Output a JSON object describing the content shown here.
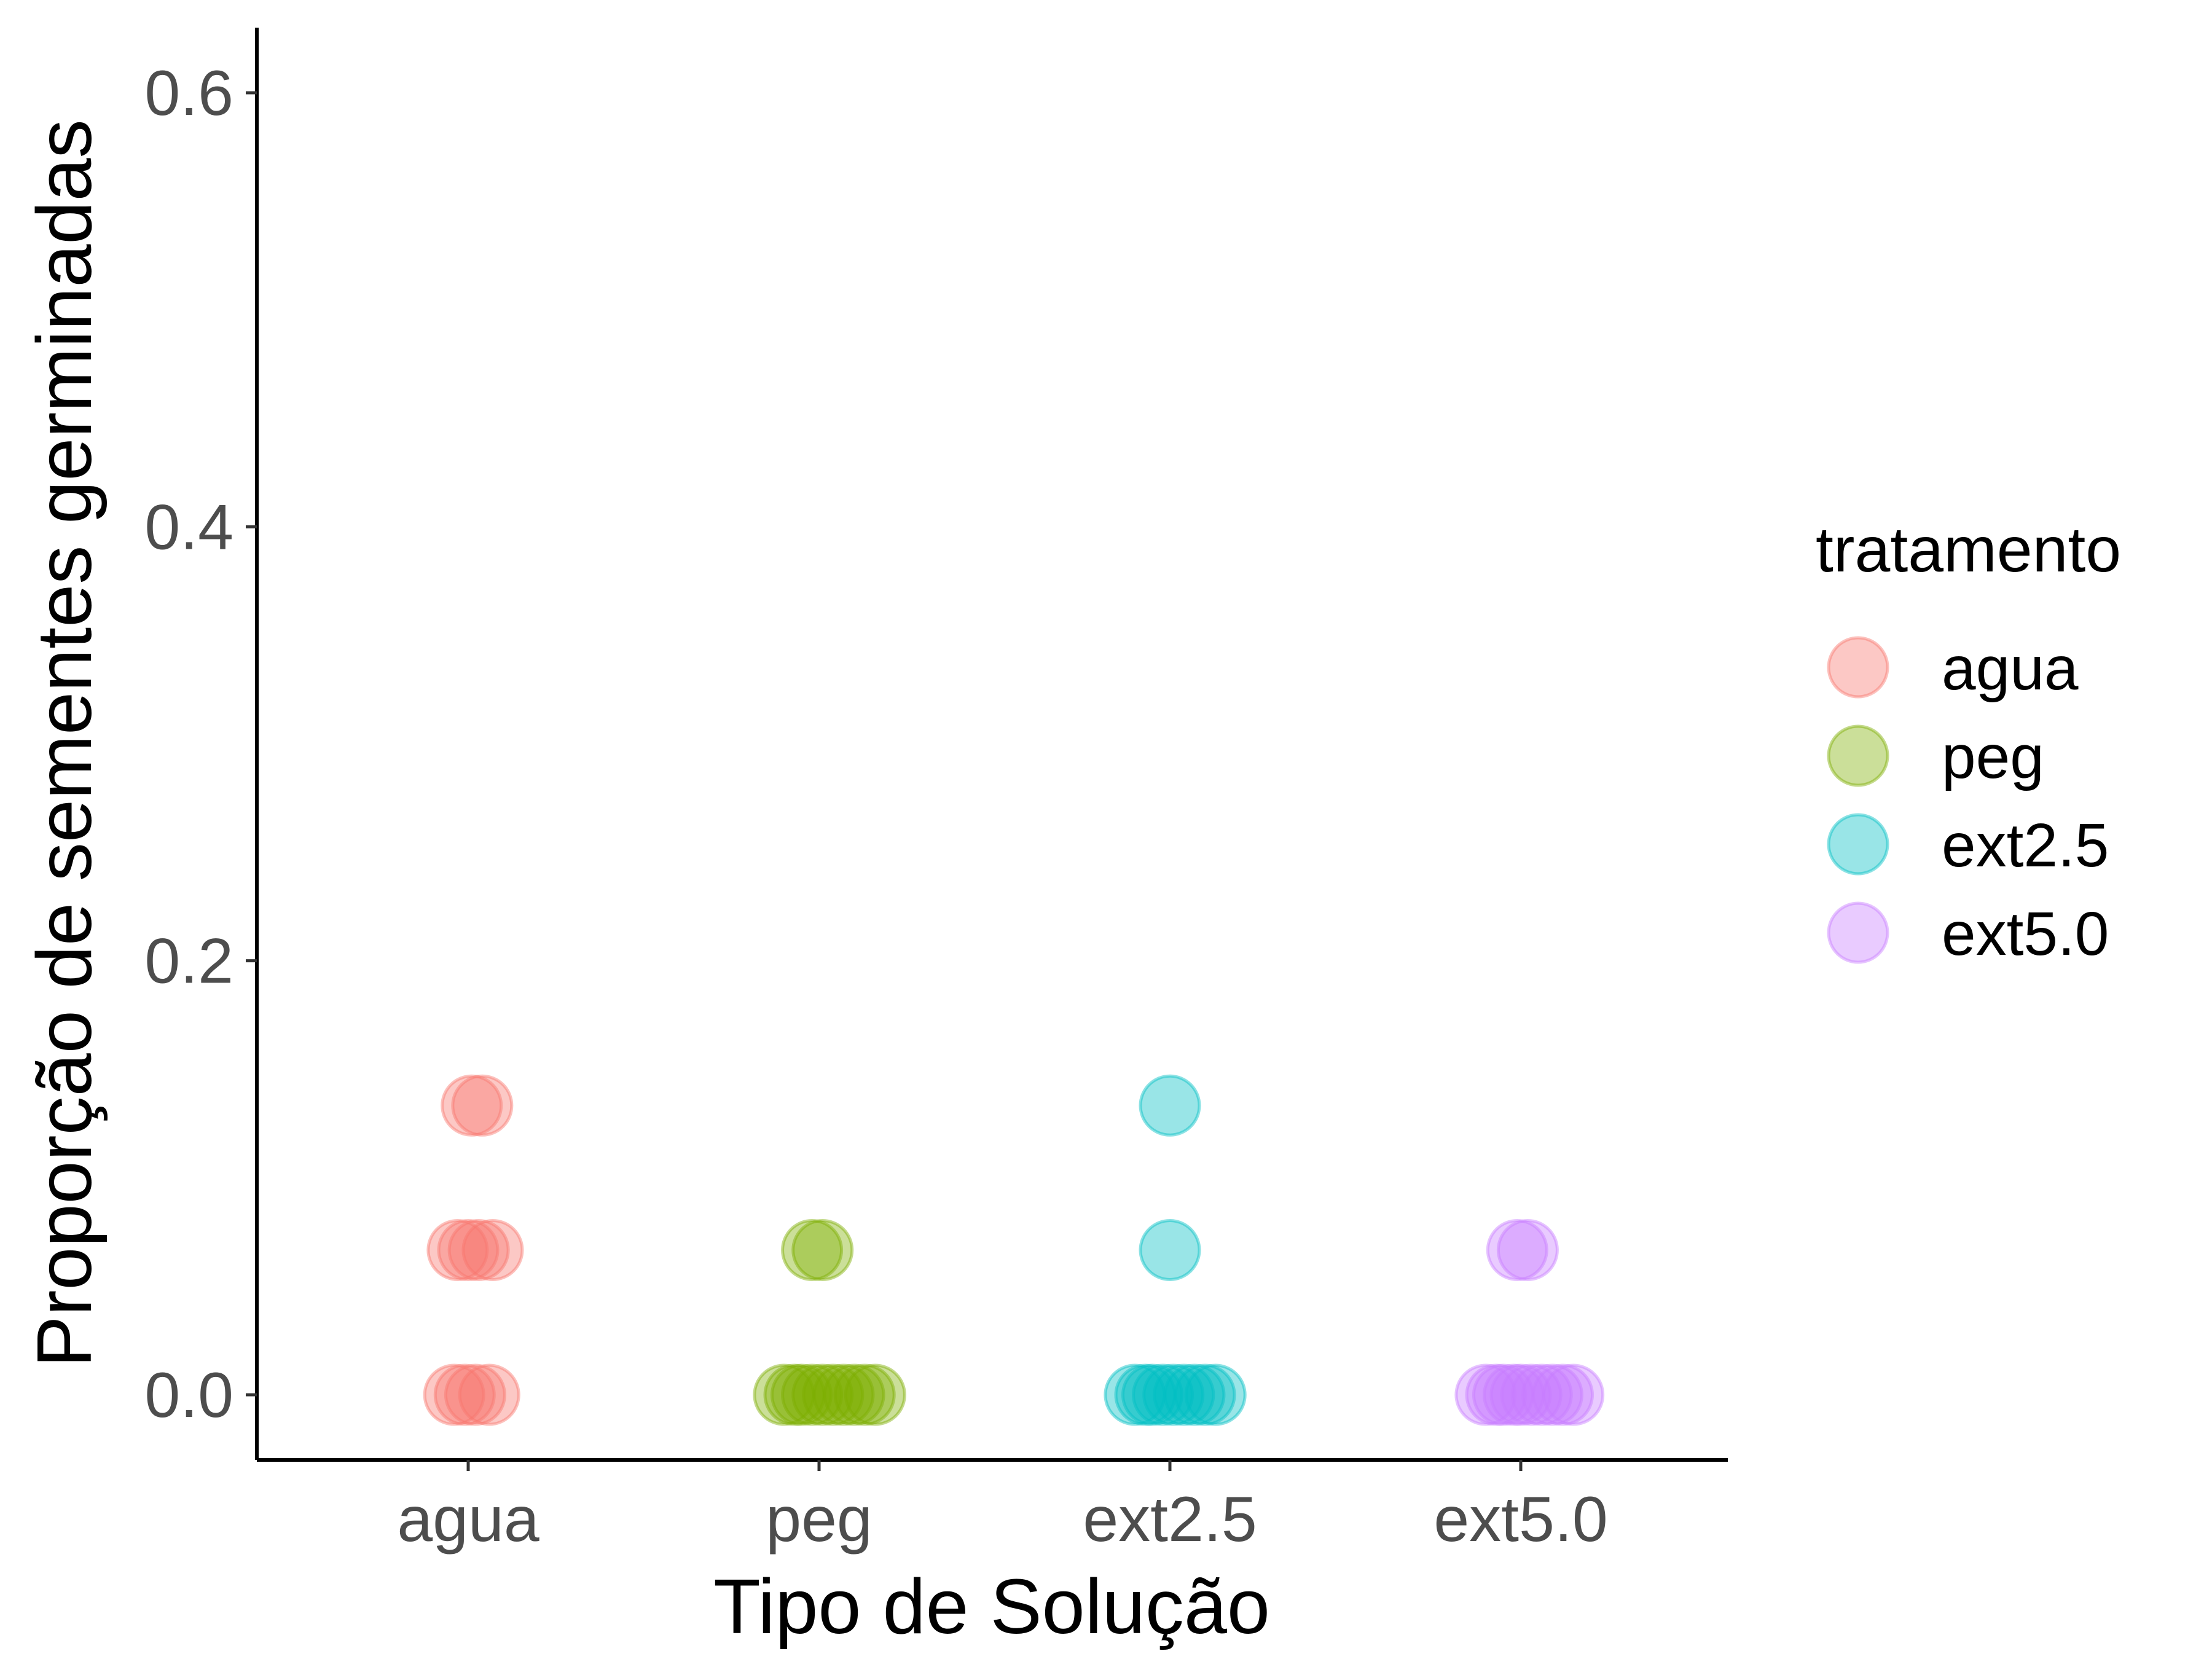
{
  "chart_data": {
    "type": "scatter",
    "title": "",
    "xlabel": "Tipo de Solução",
    "ylabel": "Proporção de sementes germinadas",
    "categories": [
      "agua",
      "peg",
      "ext2.5",
      "ext5.0"
    ],
    "ylim": [
      -0.03,
      0.63
    ],
    "yticks": [
      "0.0",
      "0.2",
      "0.4",
      "0.6"
    ],
    "grid": false,
    "legend": {
      "title": "tratamento",
      "position": "right",
      "entries": [
        "agua",
        "peg",
        "ext2.5",
        "ext5.0"
      ]
    },
    "colors": {
      "agua": "#F8766D",
      "peg": "#7CAE00",
      "ext2.5": "#00BFC4",
      "ext5.0": "#C77CFF"
    },
    "series": [
      {
        "name": "agua",
        "points": [
          {
            "x": -0.03,
            "y": 0.0667
          },
          {
            "x": 0.0,
            "y": 0.0667
          },
          {
            "x": 0.03,
            "y": 0.0667
          },
          {
            "x": 0.07,
            "y": 0.0667
          },
          {
            "x": -0.04,
            "y": 0.0
          },
          {
            "x": -0.01,
            "y": 0.0
          },
          {
            "x": 0.02,
            "y": 0.0
          },
          {
            "x": 0.06,
            "y": 0.0
          },
          {
            "x": 0.01,
            "y": 0.1333
          },
          {
            "x": 0.04,
            "y": 0.1333
          }
        ]
      },
      {
        "name": "peg",
        "points": [
          {
            "x": -0.02,
            "y": 0.0667
          },
          {
            "x": 0.01,
            "y": 0.0667
          },
          {
            "x": -0.1,
            "y": 0.0
          },
          {
            "x": -0.07,
            "y": 0.0
          },
          {
            "x": -0.05,
            "y": 0.0
          },
          {
            "x": -0.02,
            "y": 0.0
          },
          {
            "x": 0.01,
            "y": 0.0
          },
          {
            "x": 0.04,
            "y": 0.0
          },
          {
            "x": 0.07,
            "y": 0.0
          },
          {
            "x": 0.1,
            "y": 0.0
          },
          {
            "x": 0.13,
            "y": 0.0
          },
          {
            "x": 0.16,
            "y": 0.0
          }
        ]
      },
      {
        "name": "ext2.5",
        "points": [
          {
            "x": 0.0,
            "y": 0.1333
          },
          {
            "x": 0.0,
            "y": 0.0667
          },
          {
            "x": -0.1,
            "y": 0.0
          },
          {
            "x": -0.07,
            "y": 0.0
          },
          {
            "x": -0.05,
            "y": 0.0
          },
          {
            "x": -0.02,
            "y": 0.0
          },
          {
            "x": 0.01,
            "y": 0.0
          },
          {
            "x": 0.04,
            "y": 0.0
          },
          {
            "x": 0.07,
            "y": 0.0
          },
          {
            "x": 0.1,
            "y": 0.0
          },
          {
            "x": 0.13,
            "y": 0.0
          }
        ]
      },
      {
        "name": "ext5.0",
        "points": [
          {
            "x": -0.01,
            "y": 0.0667
          },
          {
            "x": 0.02,
            "y": 0.0667
          },
          {
            "x": -0.1,
            "y": 0.0
          },
          {
            "x": -0.07,
            "y": 0.0
          },
          {
            "x": -0.05,
            "y": 0.0
          },
          {
            "x": -0.02,
            "y": 0.0
          },
          {
            "x": 0.0,
            "y": 0.0
          },
          {
            "x": 0.03,
            "y": 0.0
          },
          {
            "x": 0.06,
            "y": 0.0
          },
          {
            "x": 0.09,
            "y": 0.0
          },
          {
            "x": 0.12,
            "y": 0.0
          },
          {
            "x": 0.15,
            "y": 0.0
          }
        ]
      }
    ]
  }
}
